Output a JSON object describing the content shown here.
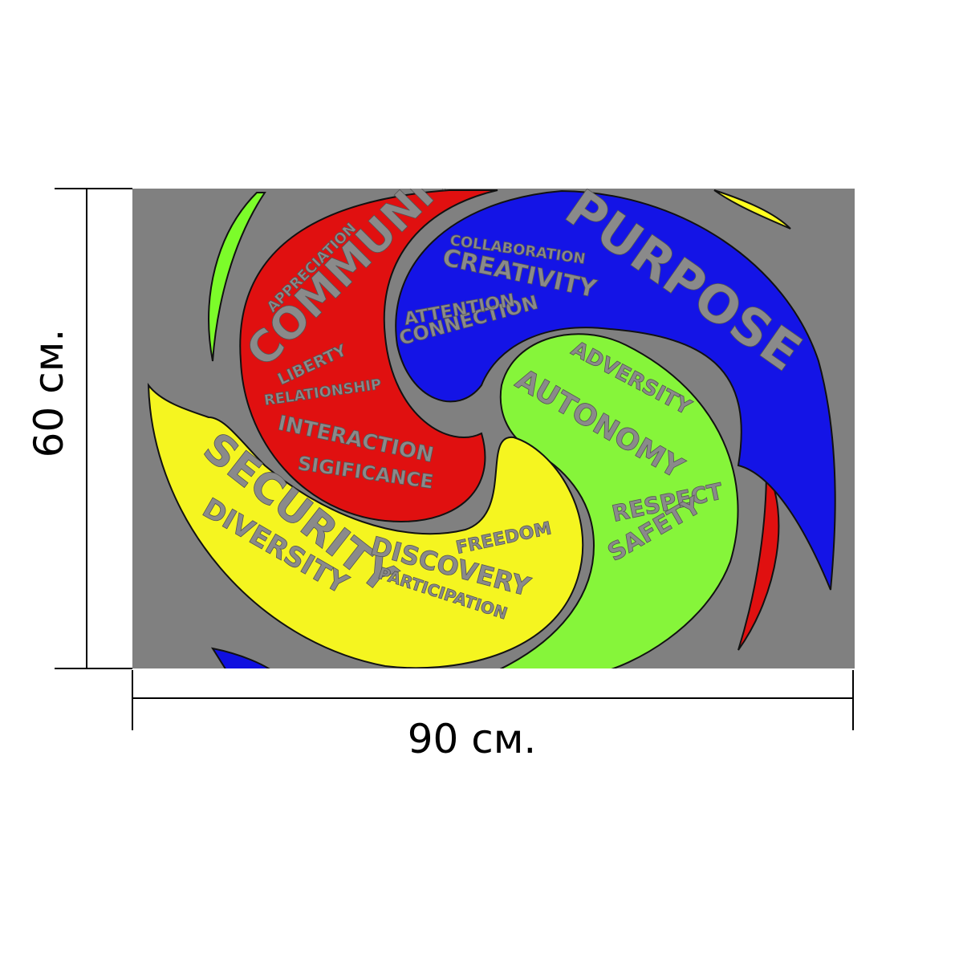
{
  "dimensions": {
    "height": "60 см.",
    "width": "90 см."
  },
  "artwork": {
    "words": [
      "COMMUNITY",
      "PURPOSE",
      "CREATIVITY",
      "CONNECTION",
      "ATTENTION",
      "COLLABORATION",
      "ADVERSITY",
      "AUTONOMY",
      "RESPECT",
      "SAFETY",
      "SECURITY",
      "DIVERSITY",
      "DISCOVERY",
      "FREEDOM",
      "INTERACTION",
      "SIGIFICANCE",
      "RELATIONSHIP",
      "LIBERTY",
      "APPRECIATION",
      "PARTICIPATION"
    ]
  }
}
